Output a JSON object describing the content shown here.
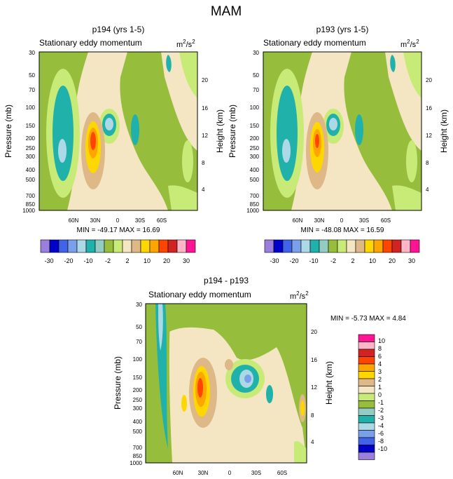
{
  "figure": {
    "title": "MAM"
  },
  "colors": {
    "levels": [
      "#9b7fdc",
      "#0000c8",
      "#4164e6",
      "#7ba0ea",
      "#add8e6",
      "#20b2aa",
      "#93ccc4",
      "#96be3c",
      "#c8eb78",
      "#f5e6c3",
      "#deb887",
      "#ffd700",
      "#ffa500",
      "#ff4500",
      "#d22323",
      "#ffb4c8",
      "#ff1493"
    ],
    "note": "shared palette, lowest to highest contour level"
  },
  "chart_data": [
    {
      "type": "heatmap",
      "id": "panel1",
      "title": "p194 (yrs 1-5)",
      "subtitle": "Stationary eddy momentum",
      "units": "m2/s2",
      "units_base": "m",
      "units_sup1": "2",
      "units_mid": "/s",
      "units_sup2": "2",
      "ylabel": "Pressure (mb)",
      "ylabel_right": "Height (km)",
      "pressure_ticks": [
        "30",
        "50",
        "70",
        "100",
        "150",
        "200",
        "250",
        "300",
        "400",
        "500",
        "700",
        "850",
        "1000"
      ],
      "pressure_values": [
        30,
        50,
        70,
        100,
        150,
        200,
        250,
        300,
        400,
        500,
        700,
        850,
        1000
      ],
      "height_ticks": [
        "20",
        "16",
        "12",
        "8",
        "4"
      ],
      "height_values": [
        20,
        16,
        12,
        8,
        4
      ],
      "lat_ticks": [
        "60N",
        "30N",
        "0",
        "30S",
        "60S"
      ],
      "lat_values": [
        60,
        30,
        0,
        -30,
        -60
      ],
      "xlim": [
        90,
        -90
      ],
      "ylim": [
        1000,
        30
      ],
      "min": "-49.17",
      "max": "16.69",
      "minmax_text": "MIN = -49.17  MAX =  16.69",
      "colorbar_orientation": "horizontal",
      "colorbar_labels": [
        "-30",
        "-20",
        "-10",
        "-2",
        "2",
        "10",
        "20",
        "30"
      ],
      "features": [
        {
          "lat": 63,
          "p": 230,
          "label": "min",
          "value": -49
        }
      ]
    },
    {
      "type": "heatmap",
      "id": "panel2",
      "title": "p193 (yrs 1-5)",
      "subtitle": "Stationary eddy momentum",
      "units": "m2/s2",
      "units_base": "m",
      "units_sup1": "2",
      "units_mid": "/s",
      "units_sup2": "2",
      "ylabel": "Pressure (mb)",
      "ylabel_right": "Height (km)",
      "pressure_ticks": [
        "30",
        "50",
        "70",
        "100",
        "150",
        "200",
        "250",
        "300",
        "400",
        "500",
        "700",
        "850",
        "1000"
      ],
      "pressure_values": [
        30,
        50,
        70,
        100,
        150,
        200,
        250,
        300,
        400,
        500,
        700,
        850,
        1000
      ],
      "height_ticks": [
        "20",
        "16",
        "12",
        "8",
        "4"
      ],
      "height_values": [
        20,
        16,
        12,
        8,
        4
      ],
      "lat_ticks": [
        "60N",
        "30N",
        "0",
        "30S",
        "60S"
      ],
      "lat_values": [
        60,
        30,
        0,
        -30,
        -60
      ],
      "xlim": [
        90,
        -90
      ],
      "ylim": [
        1000,
        30
      ],
      "min": "-48.08",
      "max": "16.59",
      "minmax_text": "MIN = -48.08  MAX =  16.59",
      "colorbar_orientation": "horizontal",
      "colorbar_labels": [
        "-30",
        "-20",
        "-10",
        "-2",
        "2",
        "10",
        "20",
        "30"
      ]
    },
    {
      "type": "heatmap",
      "id": "panel3",
      "title": "p194 - p193",
      "subtitle": "Stationary eddy momentum",
      "units": "m2/s2",
      "units_base": "m",
      "units_sup1": "2",
      "units_mid": "/s",
      "units_sup2": "2",
      "ylabel": "Pressure (mb)",
      "ylabel_right": "Height (km)",
      "pressure_ticks": [
        "30",
        "50",
        "70",
        "100",
        "150",
        "200",
        "250",
        "300",
        "400",
        "500",
        "700",
        "850",
        "1000"
      ],
      "pressure_values": [
        30,
        50,
        70,
        100,
        150,
        200,
        250,
        300,
        400,
        500,
        700,
        850,
        1000
      ],
      "height_ticks": [
        "20",
        "16",
        "12",
        "8",
        "4"
      ],
      "height_values": [
        20,
        16,
        12,
        8,
        4
      ],
      "lat_ticks": [
        "60N",
        "30N",
        "0",
        "30S",
        "60S"
      ],
      "lat_values": [
        60,
        30,
        0,
        -30,
        -60
      ],
      "xlim": [
        90,
        -90
      ],
      "ylim": [
        1000,
        30
      ],
      "min": "-5.73",
      "max": "4.84",
      "minmax_text": "MIN =  -5.73  MAX =   4.84",
      "colorbar_orientation": "vertical",
      "colorbar_labels": [
        "10",
        "8",
        "6",
        "4",
        "3",
        "2",
        "1",
        "0",
        "-1",
        "-2",
        "-3",
        "-4",
        "-6",
        "-8",
        "-10"
      ]
    }
  ]
}
